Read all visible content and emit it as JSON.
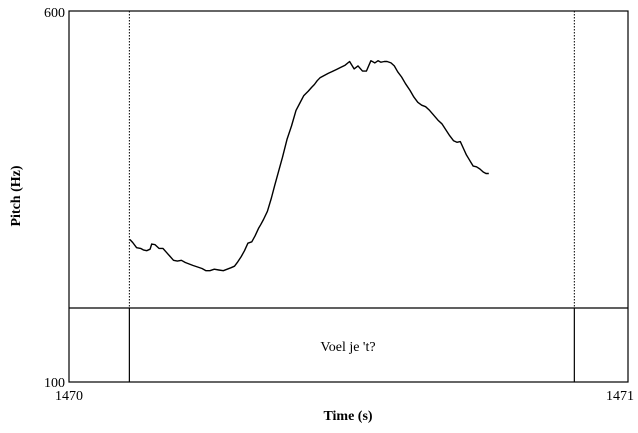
{
  "chart_data": {
    "type": "line",
    "title": "",
    "xlabel": "Time (s)",
    "ylabel": "Pitch (Hz)",
    "xlim": [
      1470,
      1471
    ],
    "ylim": [
      100,
      600
    ],
    "x_tick_labels": [
      "1470",
      "1471"
    ],
    "y_tick_labels": [
      "100",
      "600"
    ],
    "grid": false,
    "annotation": "Voel je 't?",
    "tier_boundaries": [
      1470.108,
      1470.904
    ],
    "series": [
      {
        "x": [
          1470.109,
          1470.114,
          1470.121,
          1470.128,
          1470.133,
          1470.139,
          1470.145,
          1470.148,
          1470.154,
          1470.161,
          1470.168,
          1470.174,
          1470.18,
          1470.187,
          1470.194,
          1470.201,
          1470.208,
          1470.215,
          1470.222,
          1470.23,
          1470.238,
          1470.245,
          1470.252,
          1470.26,
          1470.268,
          1470.276,
          1470.283,
          1470.29,
          1470.296,
          1470.302,
          1470.308,
          1470.314,
          1470.32,
          1470.327,
          1470.333,
          1470.339,
          1470.343,
          1470.348,
          1470.355,
          1470.362,
          1470.368,
          1470.375,
          1470.382,
          1470.39,
          1470.398,
          1470.406,
          1470.413,
          1470.42,
          1470.428,
          1470.434,
          1470.439,
          1470.444,
          1470.449,
          1470.454,
          1470.459,
          1470.464,
          1470.47,
          1470.478,
          1470.486,
          1470.494,
          1470.502,
          1470.51,
          1470.517,
          1470.525,
          1470.532,
          1470.54,
          1470.547,
          1470.553,
          1470.558,
          1470.564,
          1470.569,
          1470.576,
          1470.582,
          1470.588,
          1470.595,
          1470.602,
          1470.61,
          1470.617,
          1470.624,
          1470.631,
          1470.638,
          1470.645,
          1470.652,
          1470.66,
          1470.667,
          1470.674,
          1470.681,
          1470.688,
          1470.694,
          1470.7,
          1470.706,
          1470.711,
          1470.715,
          1470.719,
          1470.723,
          1470.729,
          1470.735,
          1470.741,
          1470.746,
          1470.751
        ],
        "y": [
          292,
          288,
          281,
          280,
          278,
          277,
          279,
          286,
          285,
          280,
          280,
          275,
          270,
          264,
          263,
          264,
          261,
          259,
          257,
          255,
          253,
          250,
          250,
          252,
          251,
          250,
          252,
          254,
          256,
          262,
          269,
          277,
          287,
          289,
          297,
          307,
          312,
          319,
          330,
          348,
          365,
          384,
          403,
          427,
          445,
          466,
          476,
          486,
          492,
          497,
          501,
          506,
          510,
          512,
          514,
          516,
          518,
          521,
          524,
          527,
          532,
          522,
          526,
          519,
          519,
          533,
          530,
          533,
          531,
          532,
          532,
          530,
          526,
          518,
          511,
          502,
          493,
          484,
          477,
          473,
          471,
          466,
          460,
          453,
          448,
          440,
          432,
          425,
          423,
          424,
          414,
          406,
          401,
          396,
          391,
          390,
          387,
          383,
          381,
          381
        ]
      }
    ]
  }
}
